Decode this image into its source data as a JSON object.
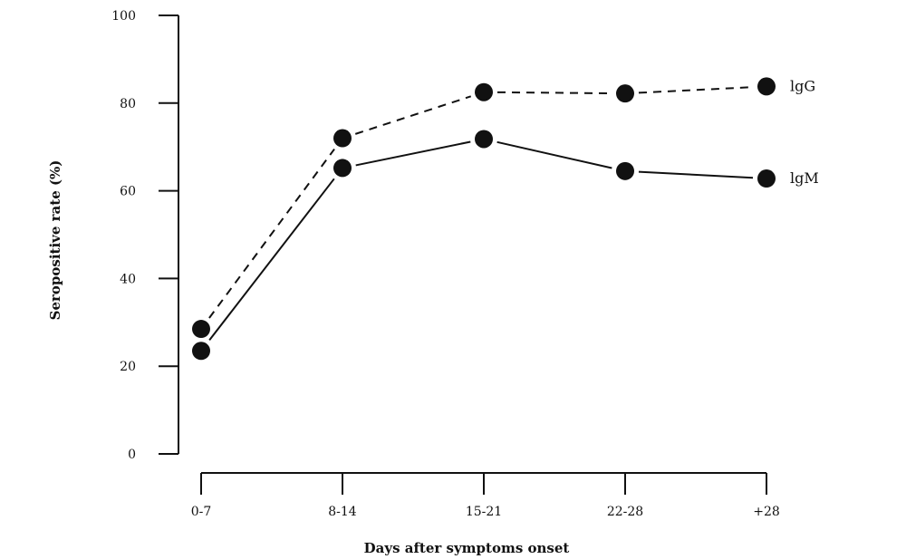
{
  "chart_data": {
    "type": "line",
    "title": "",
    "xlabel": "Days after symptoms onset",
    "ylabel": "Seropositive rate (%)",
    "categories": [
      "0-7",
      "8-14",
      "15-21",
      "22-28",
      "+28"
    ],
    "ylim": [
      0,
      100
    ],
    "yticks": [
      0,
      20,
      40,
      60,
      80,
      100
    ],
    "grid": false,
    "legend": "labels at line ends",
    "series": [
      {
        "name": "lgG",
        "line_style": "dashed",
        "values": [
          28.5,
          72,
          82.5,
          82.2,
          83.8
        ]
      },
      {
        "name": "lgM",
        "line_style": "solid",
        "values": [
          23.5,
          65.2,
          71.8,
          64.5,
          62.8
        ]
      }
    ],
    "colors": {
      "line": "#111111",
      "marker": "#111111"
    }
  }
}
